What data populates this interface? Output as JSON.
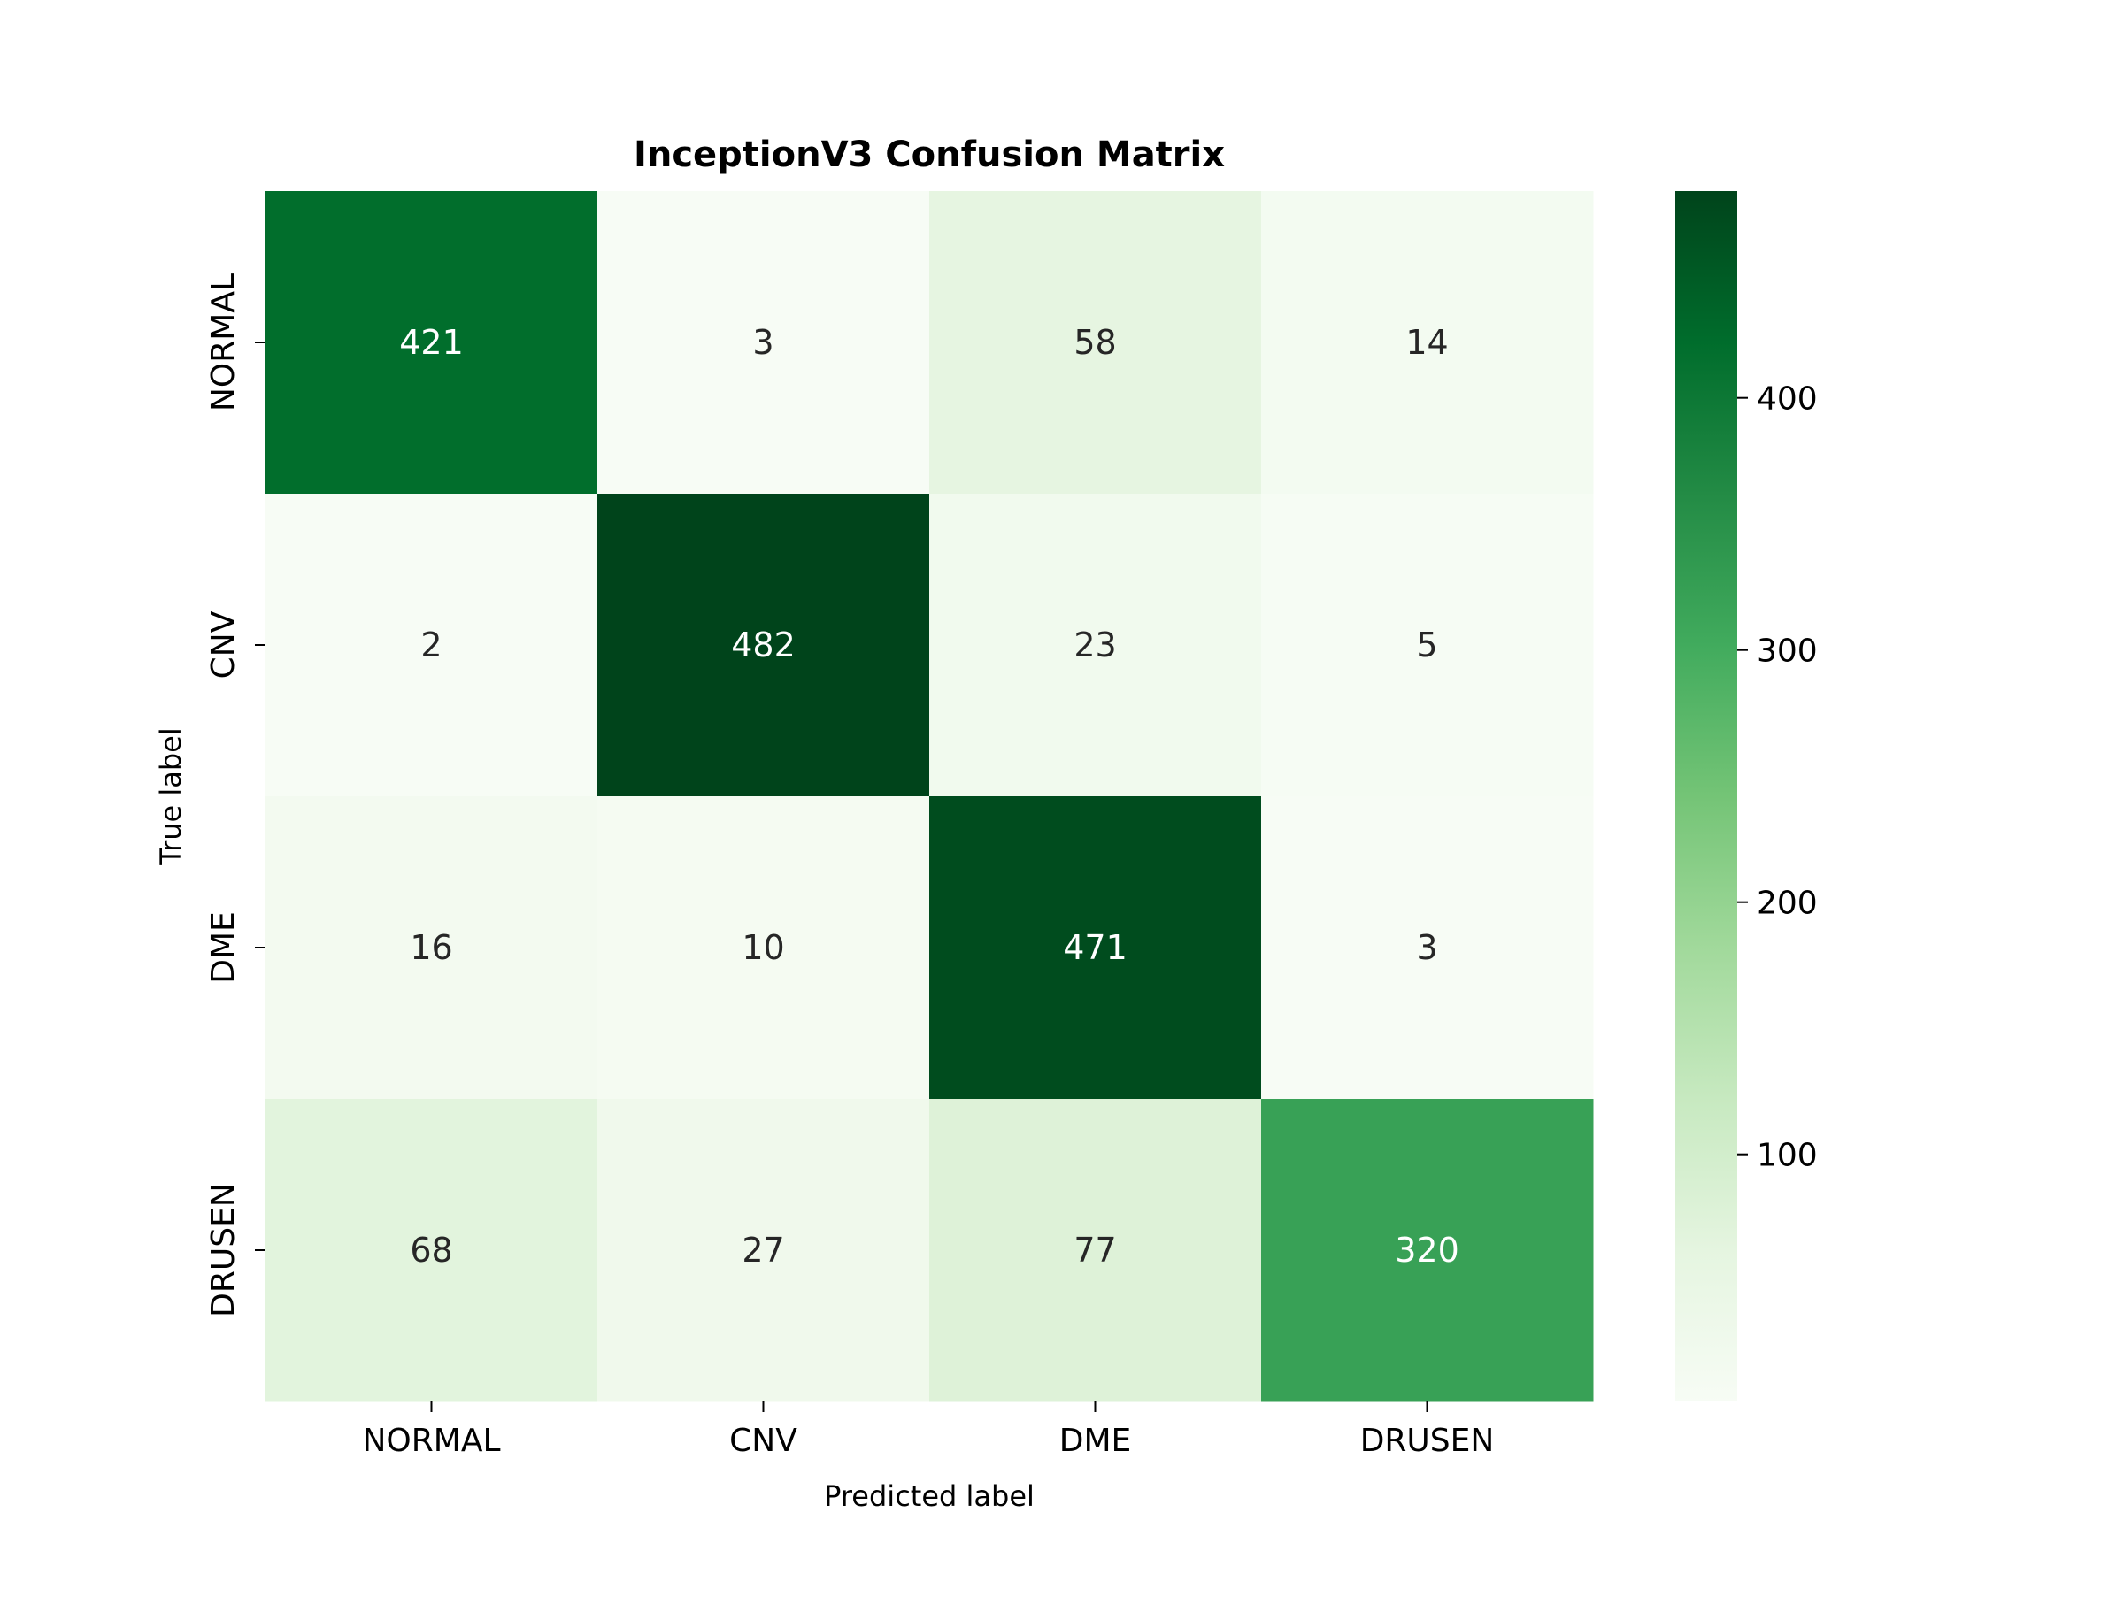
{
  "chart_data": {
    "type": "heatmap",
    "title": "InceptionV3 Confusion Matrix",
    "xlabel": "Predicted label",
    "ylabel": "True label",
    "x_categories": [
      "NORMAL",
      "CNV",
      "DME",
      "DRUSEN"
    ],
    "y_categories": [
      "NORMAL",
      "CNV",
      "DME",
      "DRUSEN"
    ],
    "values": [
      [
        421,
        3,
        58,
        14
      ],
      [
        2,
        482,
        23,
        5
      ],
      [
        16,
        10,
        471,
        3
      ],
      [
        68,
        27,
        77,
        320
      ]
    ],
    "colormap": "Greens",
    "colorbar": {
      "range": [
        2,
        482
      ],
      "ticks": [
        100,
        200,
        300,
        400
      ]
    },
    "grid": false
  }
}
